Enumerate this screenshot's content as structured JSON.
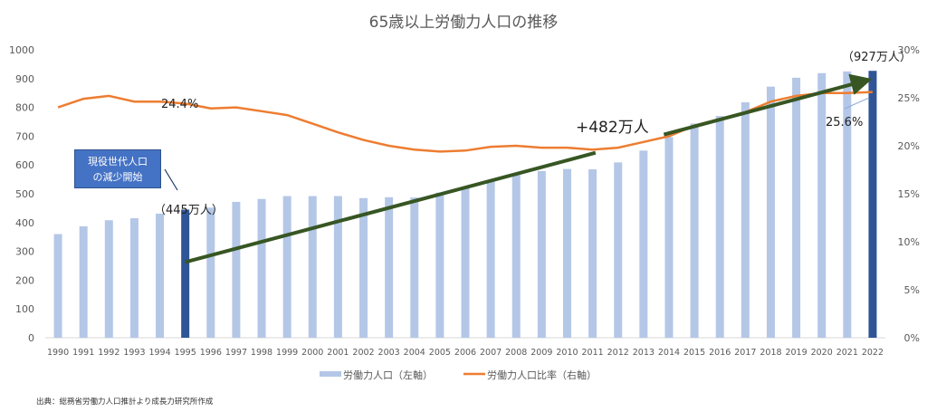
{
  "chart_data": {
    "type": "bar+line",
    "title": "65歳以上労働力人口の推移",
    "categories": [
      "1990",
      "1991",
      "1992",
      "1993",
      "1994",
      "1995",
      "1996",
      "1997",
      "1998",
      "1999",
      "2000",
      "2001",
      "2002",
      "2003",
      "2004",
      "2005",
      "2006",
      "2007",
      "2008",
      "2009",
      "2010",
      "2011",
      "2012",
      "2013",
      "2014",
      "2015",
      "2016",
      "2017",
      "2018",
      "2019",
      "2020",
      "2021",
      "2022"
    ],
    "series": [
      {
        "name": "労働力人口（左軸）",
        "type": "bar",
        "axis": "left",
        "color": "#b4c7e7",
        "highlight_color": "#2f5597",
        "highlight_categories": [
          "1995",
          "2022"
        ],
        "values": [
          360,
          387,
          408,
          415,
          431,
          445,
          452,
          472,
          482,
          492,
          492,
          492,
          485,
          488,
          487,
          504,
          520,
          548,
          566,
          579,
          586,
          585,
          609,
          650,
          697,
          744,
          770,
          818,
          872,
          903,
          919,
          925,
          927
        ]
      },
      {
        "name": "労働力人口比率（右軸）",
        "type": "line",
        "axis": "right",
        "color": "#ed7d31",
        "values": [
          24.0,
          24.9,
          25.2,
          24.6,
          24.6,
          24.4,
          23.9,
          24.0,
          23.6,
          23.2,
          22.3,
          21.4,
          20.6,
          20.0,
          19.6,
          19.4,
          19.5,
          19.9,
          20.0,
          19.8,
          19.8,
          19.6,
          19.8,
          20.4,
          21.0,
          22.1,
          22.8,
          23.5,
          24.6,
          25.2,
          25.5,
          25.5,
          25.6
        ]
      }
    ],
    "left_axis": {
      "ylim": [
        0,
        1000
      ],
      "ticks": [
        "0",
        "100",
        "200",
        "300",
        "400",
        "500",
        "600",
        "700",
        "800",
        "900",
        "1000"
      ]
    },
    "right_axis": {
      "ylim": [
        0,
        30
      ],
      "ticks": [
        "0%",
        "5%",
        "10%",
        "15%",
        "20%",
        "25%",
        "30%"
      ]
    },
    "legend": {
      "position": "bottom",
      "entries": [
        "労働力人口（左軸）",
        "労働力人口比率（右軸）"
      ]
    },
    "grid": false,
    "annotations": {
      "callout_line1": "現役世代人口",
      "callout_line2": "の減少開始",
      "label_1995": "（445万人）",
      "label_2022": "（927万人）",
      "ratio_1995": "24.4%",
      "ratio_2022": "25.6%",
      "increase": "+482万人",
      "trend_arrow_color": "#375623"
    }
  },
  "source": "出典：総務省労働力人口推計より成長力研究所作成"
}
